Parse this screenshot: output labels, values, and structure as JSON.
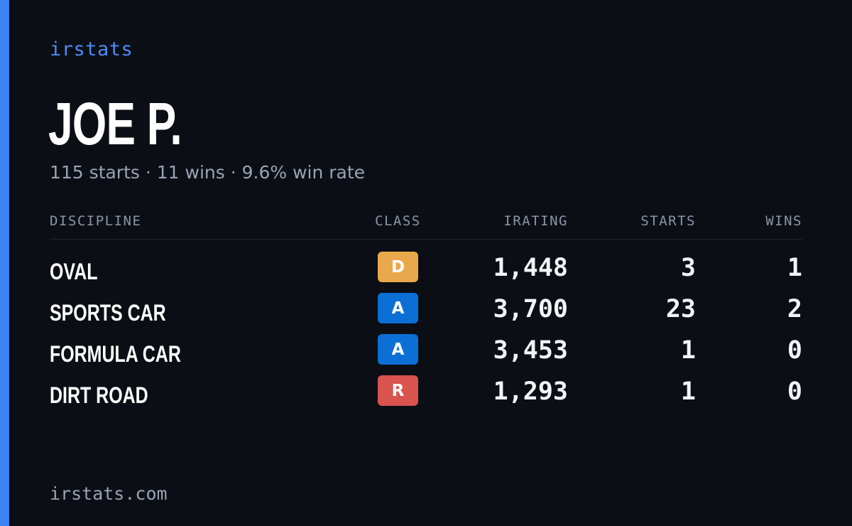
{
  "brand": "irstats",
  "driver": {
    "name": "JOE P.",
    "summary": "115 starts · 11 wins · 9.6% win rate"
  },
  "table": {
    "headers": {
      "discipline": "DISCIPLINE",
      "class": "CLASS",
      "irating": "IRATING",
      "starts": "STARTS",
      "wins": "WINS"
    },
    "rows": [
      {
        "discipline": "OVAL",
        "class": "D",
        "class_color": "#e9a84b",
        "irating": "1,448",
        "starts": "3",
        "wins": "1"
      },
      {
        "discipline": "SPORTS CAR",
        "class": "A",
        "class_color": "#0b6fd6",
        "irating": "3,700",
        "starts": "23",
        "wins": "2"
      },
      {
        "discipline": "FORMULA CAR",
        "class": "A",
        "class_color": "#0b6fd6",
        "irating": "3,453",
        "starts": "1",
        "wins": "0"
      },
      {
        "discipline": "DIRT ROAD",
        "class": "R",
        "class_color": "#d9534f",
        "irating": "1,293",
        "starts": "1",
        "wins": "0"
      }
    ]
  },
  "footer": "irstats.com",
  "colors": {
    "background": "#0b0e15",
    "accent": "#3b82f6"
  }
}
